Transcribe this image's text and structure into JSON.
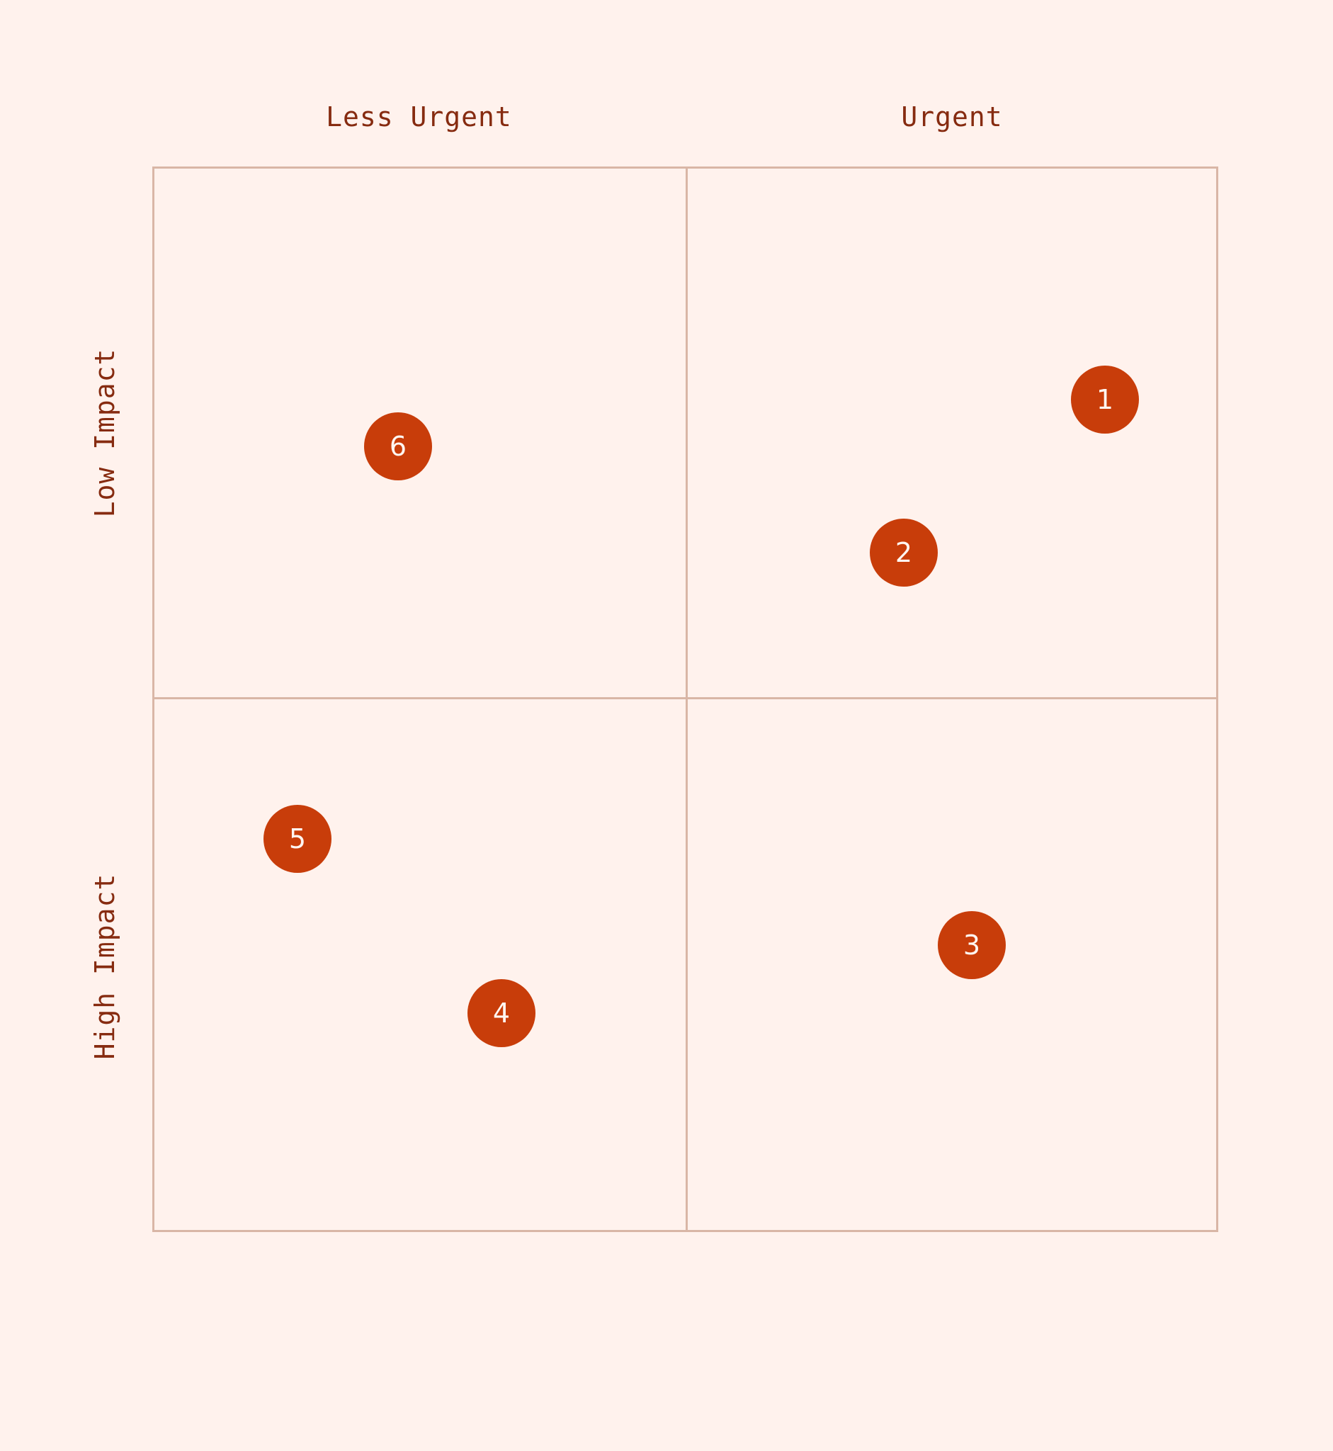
{
  "columns": {
    "left": "Less Urgent",
    "right": "Urgent"
  },
  "rows": {
    "top": "Low Impact",
    "bottom": "High Impact"
  },
  "items": [
    {
      "label": "1",
      "quadrant": "Urgent / Low Impact"
    },
    {
      "label": "2",
      "quadrant": "Urgent / Low Impact"
    },
    {
      "label": "3",
      "quadrant": "Urgent / High Impact"
    },
    {
      "label": "4",
      "quadrant": "Less Urgent / High Impact"
    },
    {
      "label": "5",
      "quadrant": "Less Urgent / High Impact"
    },
    {
      "label": "6",
      "quadrant": "Less Urgent / Low Impact"
    }
  ],
  "colors": {
    "background": "#fff2ed",
    "grid": "#d9b6a6",
    "label_text": "#862b10",
    "marker_fill": "#c83d0a",
    "marker_text": "#fff6f1"
  }
}
